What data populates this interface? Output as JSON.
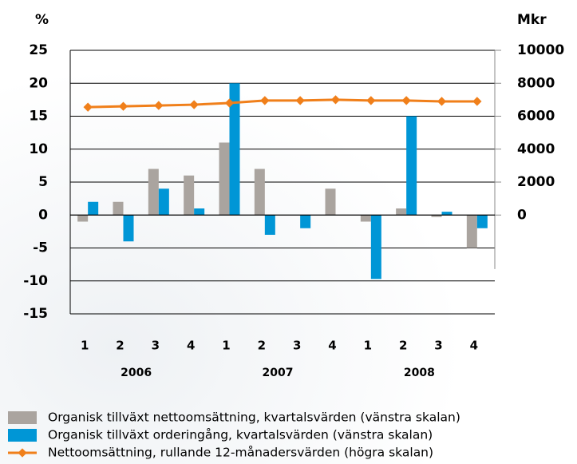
{
  "chart_data": {
    "type": "bar",
    "ylabel": "%",
    "y2label": "Mkr",
    "categories": [
      "1",
      "2",
      "3",
      "4",
      "1",
      "2",
      "3",
      "4",
      "1",
      "2",
      "3",
      "4"
    ],
    "groups": [
      {
        "label": "2006",
        "span": [
          0,
          3
        ]
      },
      {
        "label": "2007",
        "span": [
          4,
          7
        ]
      },
      {
        "label": "2008",
        "span": [
          8,
          11
        ]
      }
    ],
    "series": [
      {
        "name": "Organisk tillväxt nettoomsättning, kvartalsvärden (vänstra skalan)",
        "color": "#aaa49f",
        "type": "bar",
        "values": [
          -1,
          2,
          7,
          6,
          11,
          7,
          0,
          4,
          -1,
          1,
          -0.3,
          -5
        ]
      },
      {
        "name": "Organisk tillväxt orderingång, kvartalsvärden (vänstra skalan)",
        "color": "#0096d6",
        "type": "bar",
        "values": [
          2,
          -4,
          4,
          1,
          20,
          -3,
          -2,
          0,
          -9.7,
          15,
          0.5,
          -2
        ]
      },
      {
        "name": "Nettoomsättning, rullande 12-månadersvärden (högra skalan)",
        "color": "#f07f1a",
        "type": "line",
        "axis": "y2",
        "values": [
          6550,
          6600,
          6650,
          6700,
          6800,
          6950,
          6950,
          7000,
          6950,
          6950,
          6900,
          6900
        ]
      }
    ],
    "ylim": [
      -15,
      25
    ],
    "yticks": [
      -15,
      -10,
      -5,
      0,
      5,
      10,
      15,
      20,
      25
    ],
    "y2lim": [
      -6000,
      10000
    ],
    "y2ticks": [
      0,
      2000,
      4000,
      6000,
      8000,
      10000
    ],
    "grid": true
  }
}
